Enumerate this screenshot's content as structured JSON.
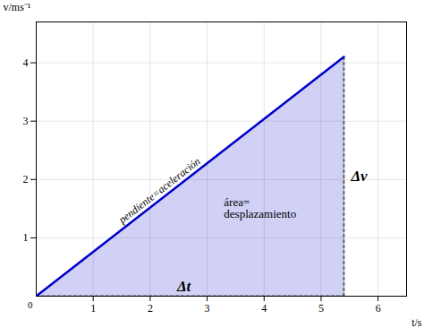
{
  "chart_data": {
    "type": "line",
    "x": [
      0,
      5.4
    ],
    "values": [
      0,
      4.1
    ],
    "color": "#0000cc",
    "xlabel": "t/s",
    "ylabel": "v/ms⁻¹",
    "xlim": [
      0,
      6.5
    ],
    "ylim": [
      0,
      4.7
    ],
    "xticks": [
      1,
      2,
      3,
      4,
      5,
      6
    ],
    "yticks": [
      1,
      2,
      3,
      4
    ],
    "grid": true,
    "annotations": [
      {
        "text": "pendiente=aceleración"
      },
      {
        "text": "área="
      },
      {
        "text": "desplazamiento"
      },
      {
        "text": "Δt"
      },
      {
        "text": "Δv"
      },
      {
        "text": "0"
      }
    ]
  }
}
